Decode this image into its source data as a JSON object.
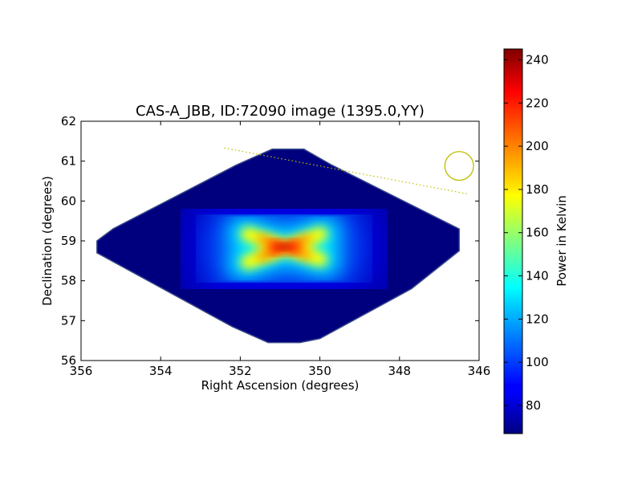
{
  "chart_data": {
    "type": "heatmap",
    "title": "CAS-A_JBB, ID:72090 image (1395.0,YY)",
    "xlabel": "Right Ascension (degrees)",
    "ylabel": "Declination (degrees)",
    "xlim": [
      356,
      346
    ],
    "ylim": [
      56,
      62
    ],
    "x_ticks": [
      "356",
      "354",
      "352",
      "350",
      "348",
      "346"
    ],
    "y_ticks": [
      "62",
      "61",
      "60",
      "59",
      "58",
      "57",
      "56"
    ],
    "colorbar": {
      "label": "Power in Kelvin",
      "range": [
        67,
        245
      ],
      "ticks": [
        "80",
        "100",
        "120",
        "140",
        "160",
        "180",
        "200",
        "220",
        "240"
      ],
      "colormap": "jet"
    },
    "coverage_polygon_radec": [
      [
        355.2,
        59.3
      ],
      [
        352.1,
        60.9
      ],
      [
        351.2,
        61.3
      ],
      [
        350.4,
        61.3
      ],
      [
        349.7,
        60.9
      ],
      [
        346.5,
        59.3
      ],
      [
        346.5,
        58.75
      ],
      [
        347.7,
        57.8
      ],
      [
        350.0,
        56.55
      ],
      [
        350.5,
        56.45
      ],
      [
        351.3,
        56.45
      ],
      [
        352.2,
        56.85
      ],
      [
        355.6,
        58.7
      ],
      [
        355.6,
        59.0
      ]
    ],
    "background_level_k": 68,
    "source_peak": {
      "ra": 350.9,
      "dec": 58.85,
      "value_k": 245
    },
    "source_arms": [
      {
        "from": [
          352.2,
          59.3
        ],
        "to": [
          349.6,
          58.4
        ]
      },
      {
        "from": [
          352.2,
          58.3
        ],
        "to": [
          349.6,
          59.3
        ]
      }
    ],
    "track_line": {
      "from": [
        352.4,
        61.33
      ],
      "to": [
        346.3,
        60.18
      ],
      "style": "dotted",
      "color": "#bfbf00"
    },
    "beam_circle": {
      "ra": 346.5,
      "dec": 60.88,
      "radius_deg": 0.36,
      "color": "#bfbf00"
    }
  }
}
